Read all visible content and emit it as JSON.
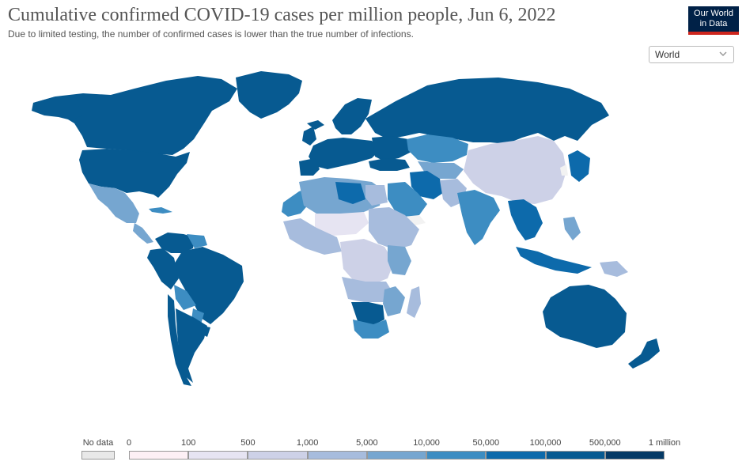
{
  "header": {
    "title": "Cumulative confirmed COVID-19 cases per million people, Jun 6, 2022",
    "subtitle": "Due to limited testing, the number of confirmed cases is lower than the true number of infections.",
    "logo_line1": "Our World",
    "logo_line2": "in Data"
  },
  "region_select": {
    "value": "World"
  },
  "colors": {
    "no_data": "#e8e8e8",
    "scale": [
      "#fdf0f5",
      "#e6e4f2",
      "#cdd1e7",
      "#a7bcdd",
      "#76a6d0",
      "#3d8dc2",
      "#0d6aab",
      "#075a91",
      "#053a66"
    ]
  },
  "legend": {
    "no_data_label": "No data",
    "bins": [
      {
        "label": "0"
      },
      {
        "label": "100"
      },
      {
        "label": "500"
      },
      {
        "label": "1,000"
      },
      {
        "label": "5,000"
      },
      {
        "label": "10,000"
      },
      {
        "label": "50,000"
      },
      {
        "label": "100,000"
      },
      {
        "label": "500,000"
      },
      {
        "label": "1 million"
      }
    ]
  }
}
